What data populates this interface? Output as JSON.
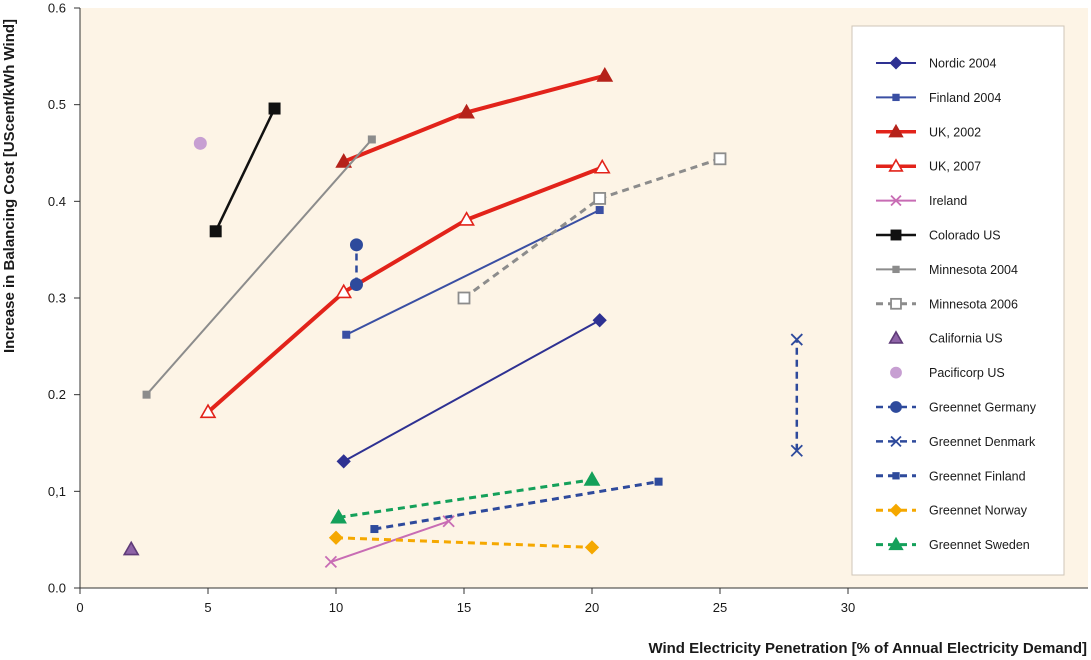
{
  "chart_data": {
    "type": "line",
    "title": "",
    "xlabel": "Wind Electricity Penetration [% of Annual Electricity Demand]",
    "ylabel": "Increase in Balancing Cost [UScent/kWh Wind]",
    "xlim": [
      0,
      40
    ],
    "ylim": [
      0,
      0.6
    ],
    "x_ticks": [
      "0",
      "5",
      "10",
      "15",
      "20",
      "25",
      "30"
    ],
    "x_tick_values": [
      0,
      5,
      10,
      15,
      20,
      25,
      30
    ],
    "y_ticks": [
      "0.0",
      "0,1",
      "0.2",
      "0.3",
      "0.4",
      "0.5",
      "0.6"
    ],
    "y_tick_values": [
      0,
      0.1,
      0.2,
      0.3,
      0.4,
      0.5,
      0.6
    ],
    "grid": false,
    "plot_background": "#fdf4e6",
    "legend_position": "right",
    "series": [
      {
        "name": "Nordic 2004",
        "color": "#2e3192",
        "line": "solid",
        "width": 2,
        "marker": "diamond",
        "fill": true,
        "points": [
          [
            10.3,
            0.131
          ],
          [
            20.3,
            0.277
          ]
        ]
      },
      {
        "name": "Finland 2004",
        "color": "#3a4fa3",
        "line": "solid",
        "width": 2,
        "marker": "square-small",
        "fill": true,
        "points": [
          [
            10.4,
            0.262
          ],
          [
            20.3,
            0.391
          ]
        ]
      },
      {
        "name": "UK, 2002",
        "color": "#e2231a",
        "line": "solid",
        "width": 4,
        "marker": "triangle",
        "fill": true,
        "markerColor": "#b5221a",
        "points": [
          [
            10.3,
            0.441
          ],
          [
            15.1,
            0.492
          ],
          [
            20.5,
            0.53
          ]
        ]
      },
      {
        "name": "UK, 2007",
        "color": "#e2231a",
        "line": "solid",
        "width": 4,
        "marker": "triangle",
        "fill": false,
        "points": [
          [
            5.0,
            0.182
          ],
          [
            10.3,
            0.306
          ],
          [
            15.1,
            0.381
          ],
          [
            20.4,
            0.435
          ]
        ]
      },
      {
        "name": "Ireland",
        "color": "#c86cb4",
        "line": "solid",
        "width": 2,
        "marker": "x",
        "fill": false,
        "points": [
          [
            9.8,
            0.027
          ],
          [
            14.4,
            0.069
          ]
        ]
      },
      {
        "name": "Colorado US",
        "color": "#111111",
        "line": "solid",
        "width": 2.5,
        "marker": "square",
        "fill": true,
        "points": [
          [
            5.3,
            0.369
          ],
          [
            7.6,
            0.496
          ]
        ]
      },
      {
        "name": "Minnesota 2004",
        "color": "#8c8c8c",
        "line": "solid",
        "width": 2,
        "marker": "square-small",
        "fill": true,
        "points": [
          [
            2.6,
            0.2
          ],
          [
            11.4,
            0.464
          ]
        ]
      },
      {
        "name": "Minnesota 2006",
        "color": "#8c8c8c",
        "line": "dashed",
        "width": 3,
        "marker": "square",
        "fill": false,
        "points": [
          [
            15.0,
            0.3
          ],
          [
            20.3,
            0.403
          ],
          [
            25.0,
            0.444
          ]
        ]
      },
      {
        "name": "California US",
        "color": "#8e63a7",
        "line": "none",
        "width": 0,
        "marker": "triangle",
        "fill": true,
        "markerStroke": "#5f3b78",
        "points": [
          [
            2.0,
            0.04
          ]
        ]
      },
      {
        "name": "Pacificorp US",
        "color": "#c79fd2",
        "line": "none",
        "width": 0,
        "marker": "circle",
        "fill": true,
        "points": [
          [
            4.7,
            0.46
          ]
        ]
      },
      {
        "name": "Greennet Germany",
        "color": "#2e4a9c",
        "line": "dashed",
        "width": 2.5,
        "marker": "circle",
        "fill": true,
        "points": [
          [
            10.8,
            0.314
          ],
          [
            10.8,
            0.355
          ]
        ]
      },
      {
        "name": "Greennet Denmark",
        "color": "#2e4a9c",
        "line": "dashed",
        "width": 2.5,
        "marker": "x",
        "fill": false,
        "points": [
          [
            28.0,
            0.142
          ],
          [
            28.0,
            0.257
          ]
        ]
      },
      {
        "name": "Greennet Finland",
        "color": "#2e4a9c",
        "line": "dashed",
        "width": 3,
        "marker": "square-small",
        "fill": true,
        "points": [
          [
            11.5,
            0.061
          ],
          [
            22.6,
            0.11
          ]
        ]
      },
      {
        "name": "Greennet Norway",
        "color": "#f5a800",
        "line": "dashed",
        "width": 3,
        "marker": "diamond",
        "fill": true,
        "points": [
          [
            10.0,
            0.052
          ],
          [
            20.0,
            0.042
          ]
        ]
      },
      {
        "name": "Greennet Sweden",
        "color": "#14a05a",
        "line": "dashed",
        "width": 3,
        "marker": "triangle",
        "fill": true,
        "points": [
          [
            10.1,
            0.073
          ],
          [
            20.0,
            0.112
          ]
        ]
      }
    ]
  }
}
